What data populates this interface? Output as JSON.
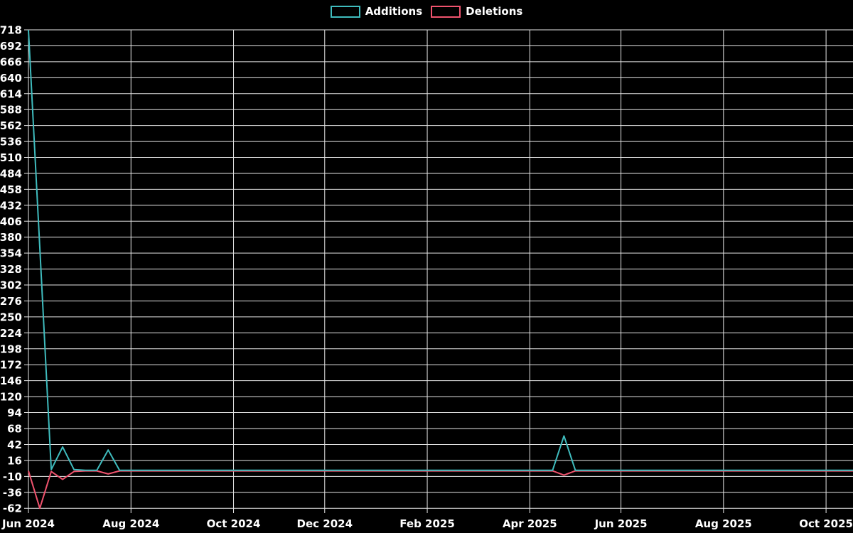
{
  "legend": {
    "items": [
      {
        "label": "Additions",
        "color": "#3fbcbe"
      },
      {
        "label": "Deletions",
        "color": "#f0536e"
      }
    ]
  },
  "colors": {
    "background": "#000000",
    "gridline": "#e6e6e6",
    "tick_text": "#ffffff",
    "additions": "#3fbcbe",
    "deletions": "#f0536e"
  },
  "chart_data": {
    "type": "line",
    "title": "",
    "xlabel": "",
    "ylabel": "",
    "legend_position": "top-center",
    "grid": true,
    "x_tick_labels": [
      "Jun 2024",
      "Aug 2024",
      "Oct 2024",
      "Dec 2024",
      "Feb 2025",
      "Apr 2025",
      "Jun 2025",
      "Aug 2025",
      "Oct 2025"
    ],
    "x_tick_week_indices": [
      0,
      9,
      18,
      26,
      35,
      44,
      52,
      61,
      70
    ],
    "y_ticks": [
      -62,
      -36,
      -10,
      16,
      42,
      68,
      94,
      120,
      146,
      172,
      198,
      224,
      250,
      276,
      302,
      328,
      354,
      380,
      406,
      432,
      458,
      484,
      510,
      536,
      562,
      588,
      614,
      640,
      666,
      692,
      718
    ],
    "ylim": [
      -62,
      718
    ],
    "x_weeks": [
      "2024-06-02",
      "2024-06-09",
      "2024-06-16",
      "2024-06-23",
      "2024-06-30",
      "2024-07-07",
      "2024-07-14",
      "2024-07-21",
      "2024-07-28",
      "2024-08-04",
      "2024-08-11",
      "2024-08-18",
      "2024-08-25",
      "2024-09-01",
      "2024-09-08",
      "2024-09-15",
      "2024-09-22",
      "2024-09-29",
      "2024-10-06",
      "2024-10-13",
      "2024-10-20",
      "2024-10-27",
      "2024-11-03",
      "2024-11-10",
      "2024-11-17",
      "2024-11-24",
      "2024-12-01",
      "2024-12-08",
      "2024-12-15",
      "2024-12-22",
      "2024-12-29",
      "2025-01-05",
      "2025-01-12",
      "2025-01-19",
      "2025-01-26",
      "2025-02-02",
      "2025-02-09",
      "2025-02-16",
      "2025-02-23",
      "2025-03-02",
      "2025-03-09",
      "2025-03-16",
      "2025-03-23",
      "2025-03-30",
      "2025-04-06",
      "2025-04-13",
      "2025-04-20",
      "2025-04-27",
      "2025-05-04",
      "2025-05-11",
      "2025-05-18",
      "2025-05-25",
      "2025-06-01",
      "2025-06-08",
      "2025-06-15",
      "2025-06-22",
      "2025-06-29",
      "2025-07-06",
      "2025-07-13",
      "2025-07-20",
      "2025-07-27",
      "2025-08-03",
      "2025-08-10",
      "2025-08-17",
      "2025-08-24",
      "2025-08-31",
      "2025-09-07",
      "2025-09-14",
      "2025-09-21",
      "2025-09-28",
      "2025-10-05",
      "2025-10-12",
      "2025-10-19",
      "2025-10-26"
    ],
    "series": [
      {
        "name": "Additions",
        "color": "#3fbcbe",
        "values": [
          718,
          363,
          1,
          38,
          1,
          0,
          0,
          33,
          0,
          0,
          0,
          0,
          0,
          0,
          0,
          0,
          0,
          0,
          0,
          0,
          0,
          0,
          0,
          0,
          0,
          0,
          0,
          0,
          0,
          0,
          0,
          0,
          0,
          0,
          0,
          0,
          0,
          0,
          0,
          0,
          0,
          0,
          0,
          0,
          0,
          0,
          0,
          56,
          0,
          0,
          0,
          0,
          0,
          0,
          0,
          0,
          0,
          0,
          0,
          0,
          0,
          0,
          0,
          0,
          0,
          0,
          0,
          0,
          0,
          0,
          0,
          0,
          0,
          0
        ]
      },
      {
        "name": "Deletions",
        "color": "#f0536e",
        "values": [
          -1,
          -62,
          -2,
          -15,
          -2,
          -1,
          -1,
          -6,
          -1,
          -1,
          -1,
          -1,
          -1,
          -1,
          -1,
          -1,
          -1,
          -1,
          -1,
          -1,
          -1,
          -1,
          -1,
          -1,
          -1,
          -1,
          -1,
          -1,
          -1,
          -1,
          -1,
          -1,
          -1,
          -1,
          -1,
          -1,
          -1,
          -1,
          -1,
          -1,
          -1,
          -1,
          -1,
          -1,
          -1,
          -1,
          -1,
          -8,
          -1,
          -1,
          -1,
          -1,
          -1,
          -1,
          -1,
          -1,
          -1,
          -1,
          -1,
          -1,
          -1,
          -1,
          -1,
          -1,
          -1,
          -1,
          -1,
          -1,
          -1,
          -1,
          -1,
          -1,
          -1,
          -1
        ]
      }
    ]
  }
}
